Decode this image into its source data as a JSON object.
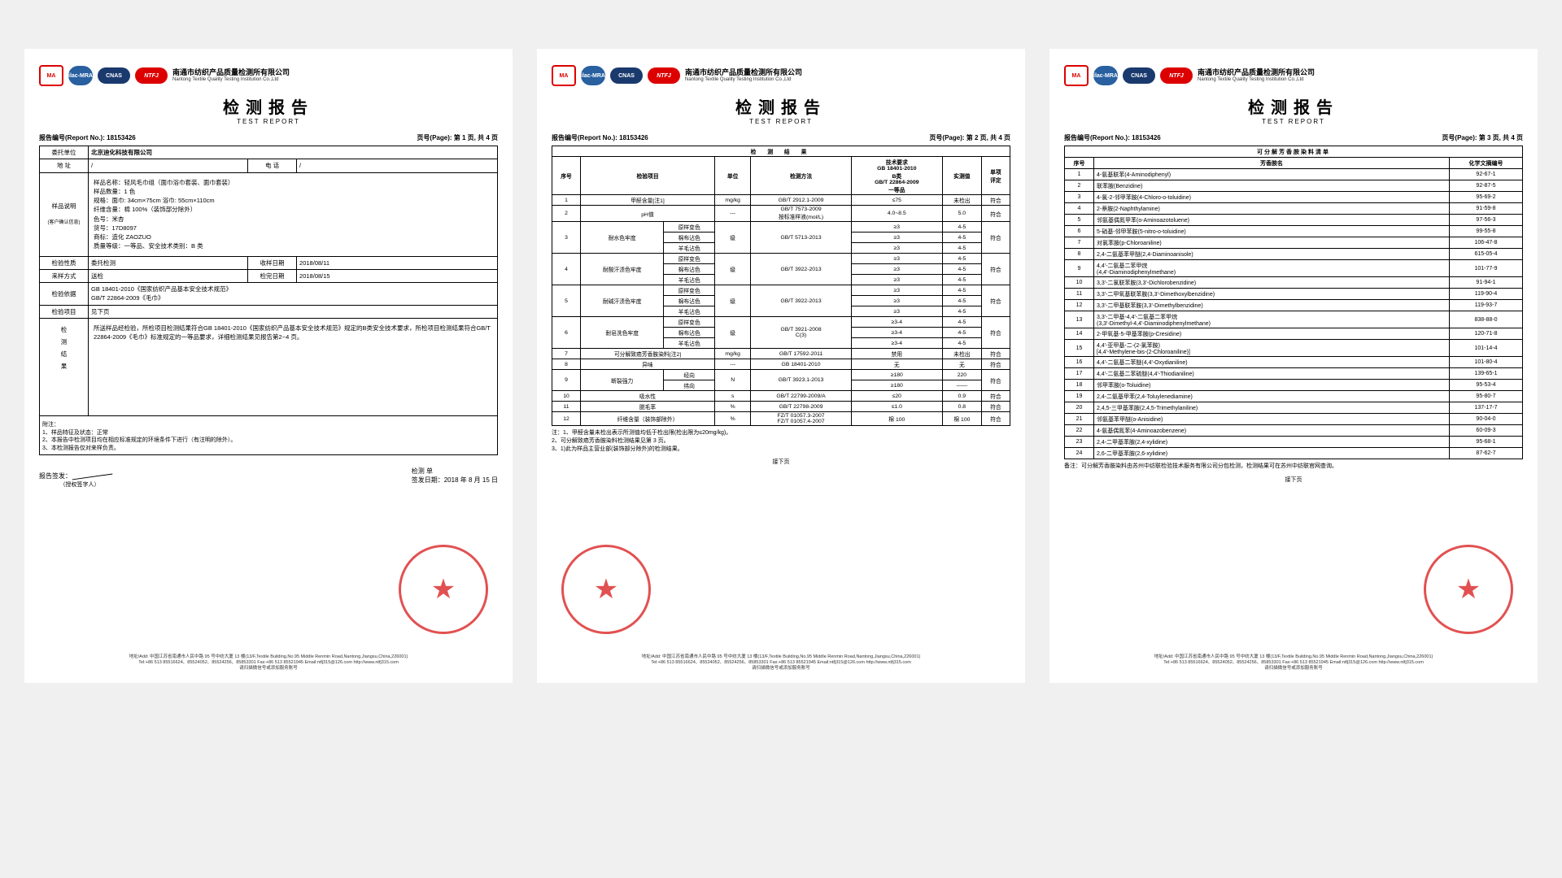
{
  "company": {
    "cn": "南通市纺织产品质量检测所有限公司",
    "en": "Nantong Textile Quality Testing Institution Co.,Ltd"
  },
  "logos": {
    "ma": "MA",
    "ilac": "ilac-MRA",
    "cnas": "CNAS",
    "ntfj": "NTFJ"
  },
  "title": {
    "cn": "检测报告",
    "en": "TEST REPORT"
  },
  "report_no_label": "报告编号(Report No.):",
  "report_no": "18153426",
  "page_label": "页号(Page):",
  "pages": {
    "p1": "第 1 页, 共 4 页",
    "p2": "第 2 页, 共 4 页",
    "p3": "第 3 页, 共 4 页"
  },
  "p1": {
    "client_label": "委托单位",
    "client": "北京迪化科技有限公司",
    "addr_label": "地    址",
    "addr": "/",
    "tel_label": "电    话",
    "tel": "/",
    "sample_label": "样品说明",
    "sample_note": "(客户确认信息)",
    "sample_lines": [
      "样品名称：轻风毛巾组（面巾浴巾套装、面巾套装）",
      "样品数量：1 色",
      "规格：面巾: 34cm×75cm  浴巾: 55cm×110cm",
      "纤维含量：棉 100%（装饰部分除外）",
      "色号：米杏",
      "货号：17D8097",
      "商标：造化 ZAOZUO",
      "质量等级：一等品、安全技术类别：B 类"
    ],
    "nature_label": "检验性质",
    "nature": "委托检测",
    "recv_label": "收样日期",
    "recv": "2018/08/11",
    "from_label": "来样方式",
    "from": "送检",
    "done_label": "检完日期",
    "done": "2018/08/15",
    "basis_label": "检验依据",
    "basis": "GB 18401-2010《国家纺织产品基本安全技术规范》\nGB/T 22864-2009《毛巾》",
    "items_label": "检验项目",
    "items": "见下页",
    "result_label": "检\n测\n结\n果",
    "result_text": "    所送样品经检验，所检项目检测结果符合GB 18401-2010《国家纺织产品基本安全技术规范》规定的B类安全技术要求，所检项目检测结果符合GB/T 22864-2009《毛巾》标准规定的一等品要求，详细检测结果见报告第2~4 页。",
    "appendix_label": "附注：",
    "appendix": [
      "1、样品特征及状态：正常",
      "2、本报告中检测项目均在相应标准规定的环境条件下进行（有注明的除外）。",
      "3、本检测报告仅对来样负责。"
    ],
    "sign_label": "报告签发：",
    "sign_sub": "（授权签字人）",
    "org_label": "检测 单",
    "date_label": "签发日期：",
    "date": "2018 年 8 月 15 日"
  },
  "p2": {
    "section": "检 测 结 果",
    "head": [
      "序号",
      "检验项目",
      "单位",
      "检测方法",
      "技术要求\nGB 18401-2010\nB类\nGB/T 22864-2009\n一等品",
      "实测值",
      "单项\n评定"
    ],
    "rows": [
      {
        "n": "1",
        "item": "甲醛含量[注1]",
        "unit": "mg/kg",
        "method": "GB/T 2912.1-2009",
        "req": "≤75",
        "val": "未检出",
        "ev": "符合"
      },
      {
        "n": "2",
        "item": "pH值",
        "unit": "---",
        "method": "GB/T 7573-2009\n按标准样液(mol/L)",
        "req": "4.0~8.5",
        "val": "5.0",
        "ev": "符合"
      }
    ],
    "color_rows": [
      {
        "n": "3",
        "item": "耐水色牢度",
        "method": "GB/T 5713-2013",
        "subs": [
          "原样变色",
          "棉布沾色",
          "羊毛沾色"
        ],
        "req": [
          "≥3",
          "≥3",
          "≥3"
        ],
        "val": [
          "4-5",
          "4-5",
          "4-5"
        ],
        "ev": "符合"
      },
      {
        "n": "4",
        "item": "耐酸汗渍色牢度",
        "method": "GB/T 3922-2013",
        "subs": [
          "原样变色",
          "棉布沾色",
          "羊毛沾色"
        ],
        "req": [
          "≥3",
          "≥3",
          "≥3"
        ],
        "val": [
          "4-5",
          "4-5",
          "4-5"
        ],
        "ev": "符合"
      },
      {
        "n": "5",
        "item": "耐碱汗渍色牢度",
        "method": "GB/T 3922-2013",
        "subs": [
          "原样变色",
          "棉布沾色",
          "羊毛沾色"
        ],
        "req": [
          "≥3",
          "≥3",
          "≥3"
        ],
        "val": [
          "4-5",
          "4-5",
          "4-5"
        ],
        "ev": "符合"
      },
      {
        "n": "6",
        "item": "耐皂洗色牢度",
        "method": "GB/T 3921-2008\nC(3)",
        "subs": [
          "原样变色",
          "棉布沾色",
          "羊毛沾色"
        ],
        "req": [
          "≥3-4",
          "≥3-4",
          "≥3-4"
        ],
        "val": [
          "4-5",
          "4-5",
          "4-5"
        ],
        "ev": "符合"
      }
    ],
    "rows2": [
      {
        "n": "7",
        "item": "可分解致癌芳香胺染料[注2]",
        "unit": "mg/kg",
        "method": "GB/T 17592-2011",
        "req": "禁用",
        "val": "未检出",
        "ev": "符合"
      },
      {
        "n": "8",
        "item": "异味",
        "unit": "---",
        "method": "GB 18401-2010",
        "req": "无",
        "val": "无",
        "ev": "符合"
      }
    ],
    "break_row": {
      "n": "9",
      "item": "断裂强力",
      "subs": [
        "经向",
        "纬向"
      ],
      "unit": "N",
      "method": "GB/T 3923.1-2013",
      "req": [
        "≥180",
        "≥180"
      ],
      "val": [
        "220",
        "——"
      ],
      "ev": "符合"
    },
    "rows3": [
      {
        "n": "10",
        "item": "吸水性",
        "unit": "s",
        "method": "GB/T 22799-2009/A",
        "req": "≤20",
        "val": "0.9",
        "ev": "符合"
      },
      {
        "n": "11",
        "item": "脱毛率",
        "unit": "%",
        "method": "GB/T 22798-2009",
        "req": "≤1.0",
        "val": "0.8",
        "ev": "符合"
      },
      {
        "n": "12",
        "item": "纤维含量（装饰部除外）",
        "unit": "%",
        "method": "FZ/T 01057.3-2007\nFZ/T 01057.4-2007",
        "req": "棉 100",
        "val": "棉 100",
        "ev": "符合"
      }
    ],
    "notes": [
      "注：1、甲醛含量未检出表示所测值均低于检出限(检出限为≤20mg/kg)。",
      "    2、可分解致癌芳香胺染料检测结果见第 3 页。",
      "    3、1)此为样品主营业部(装饰部分除外)的检测结果。"
    ],
    "next": "接下页"
  },
  "p3": {
    "section": "可分解芳香胺染料清单",
    "head": [
      "序号",
      "芳香胺名",
      "化学文摘编号"
    ],
    "rows": [
      [
        "1",
        "4-氨基联苯(4-Aminodiphenyl)",
        "92-67-1"
      ],
      [
        "2",
        "联苯胺(Benzidine)",
        "92-87-5"
      ],
      [
        "3",
        "4-氯-2-邻甲苯胺(4-Chloro-o-toluidine)",
        "95-69-2"
      ],
      [
        "4",
        "2-萘胺(2-Naphthylamine)",
        "91-59-8"
      ],
      [
        "5",
        "邻氨基偶氮甲苯(o-Aminoazotoluene)",
        "97-56-3"
      ],
      [
        "6",
        "5-硝基-邻甲苯胺(5-nitro-o-toluidine)",
        "99-55-8"
      ],
      [
        "7",
        "对氯苯胺(p-Chloroaniline)",
        "106-47-8"
      ],
      [
        "8",
        "2,4-二氨基苯甲醚(2,4-Diaminoanisole)",
        "615-05-4"
      ],
      [
        "9",
        "4,4'-二氨基二苯甲烷\n(4,4'-Diaminodiphenylmethane)",
        "101-77-9"
      ],
      [
        "10",
        "3,3'-二氯联苯胺(3,3'-Dichlorobenzidine)",
        "91-94-1"
      ],
      [
        "11",
        "3,3'-二甲氧基联苯胺(3,3'-Dimethoxylbenzidine)",
        "119-90-4"
      ],
      [
        "12",
        "3,3'-二甲基联苯胺(3,3'-Dimethylbenzidine)",
        "119-93-7"
      ],
      [
        "13",
        "3,3'-二甲基-4,4'-二氨基二苯甲烷\n(3,3'-Dimethyl-4,4'-Diaminodiphenylmethane)",
        "838-88-0"
      ],
      [
        "14",
        "2-甲氧基-5-甲基苯胺(p-Cresidine)",
        "120-71-8"
      ],
      [
        "15",
        "4,4'-亚甲基-二-(2-氯苯胺)\n[4,4'-Methylene-bis-(2-Chloroaniline)]",
        "101-14-4"
      ],
      [
        "16",
        "4,4'-二氨基二苯醚(4,4'-Oxydianiline)",
        "101-80-4"
      ],
      [
        "17",
        "4,4'-二氨基二苯硫醚(4,4'-Thiodianiline)",
        "139-65-1"
      ],
      [
        "18",
        "邻甲苯胺(o-Toluidine)",
        "95-53-4"
      ],
      [
        "19",
        "2,4-二氨基甲苯(2,4-Toluylenediamine)",
        "95-80-7"
      ],
      [
        "20",
        "2,4,5-三甲基苯胺(2,4,5-Trimethylaniline)",
        "137-17-7"
      ],
      [
        "21",
        "邻氨基苯甲醚(o-Anisidine)",
        "90-04-0"
      ],
      [
        "22",
        "4-氨基偶氮苯(4-Aminoazobenzene)",
        "60-09-3"
      ],
      [
        "23",
        "2,4-二甲基苯胺(2,4-xylidine)",
        "95-68-1"
      ],
      [
        "24",
        "2,6-二甲基苯胺(2,6-xylidine)",
        "87-62-7"
      ]
    ],
    "note": "备注：可分解芳香胺染料由苏州中纺联检验技术服务有限公司分包检测，检测结果可在苏州中纺联官网查询。",
    "next": "接下页"
  },
  "footer": {
    "addr": "地址/Add: 中国江苏省南通市人民中路 95 号中纺大厦 13 楼(13/F,Textile Building,No.95 Middle Renmin Road,Nantong,Jiangsu,China,226001)",
    "tel": "Tel:+86 513 85516624、85524052、85524256、85853301  Fax:+86 513 85521945  Email:ntfj315@126.com  http://www.ntfj315.com",
    "svc": "请扫描微信号或添加服务账号"
  },
  "colors": {
    "red": "#d61f26",
    "blue": "#1a3a6e"
  }
}
